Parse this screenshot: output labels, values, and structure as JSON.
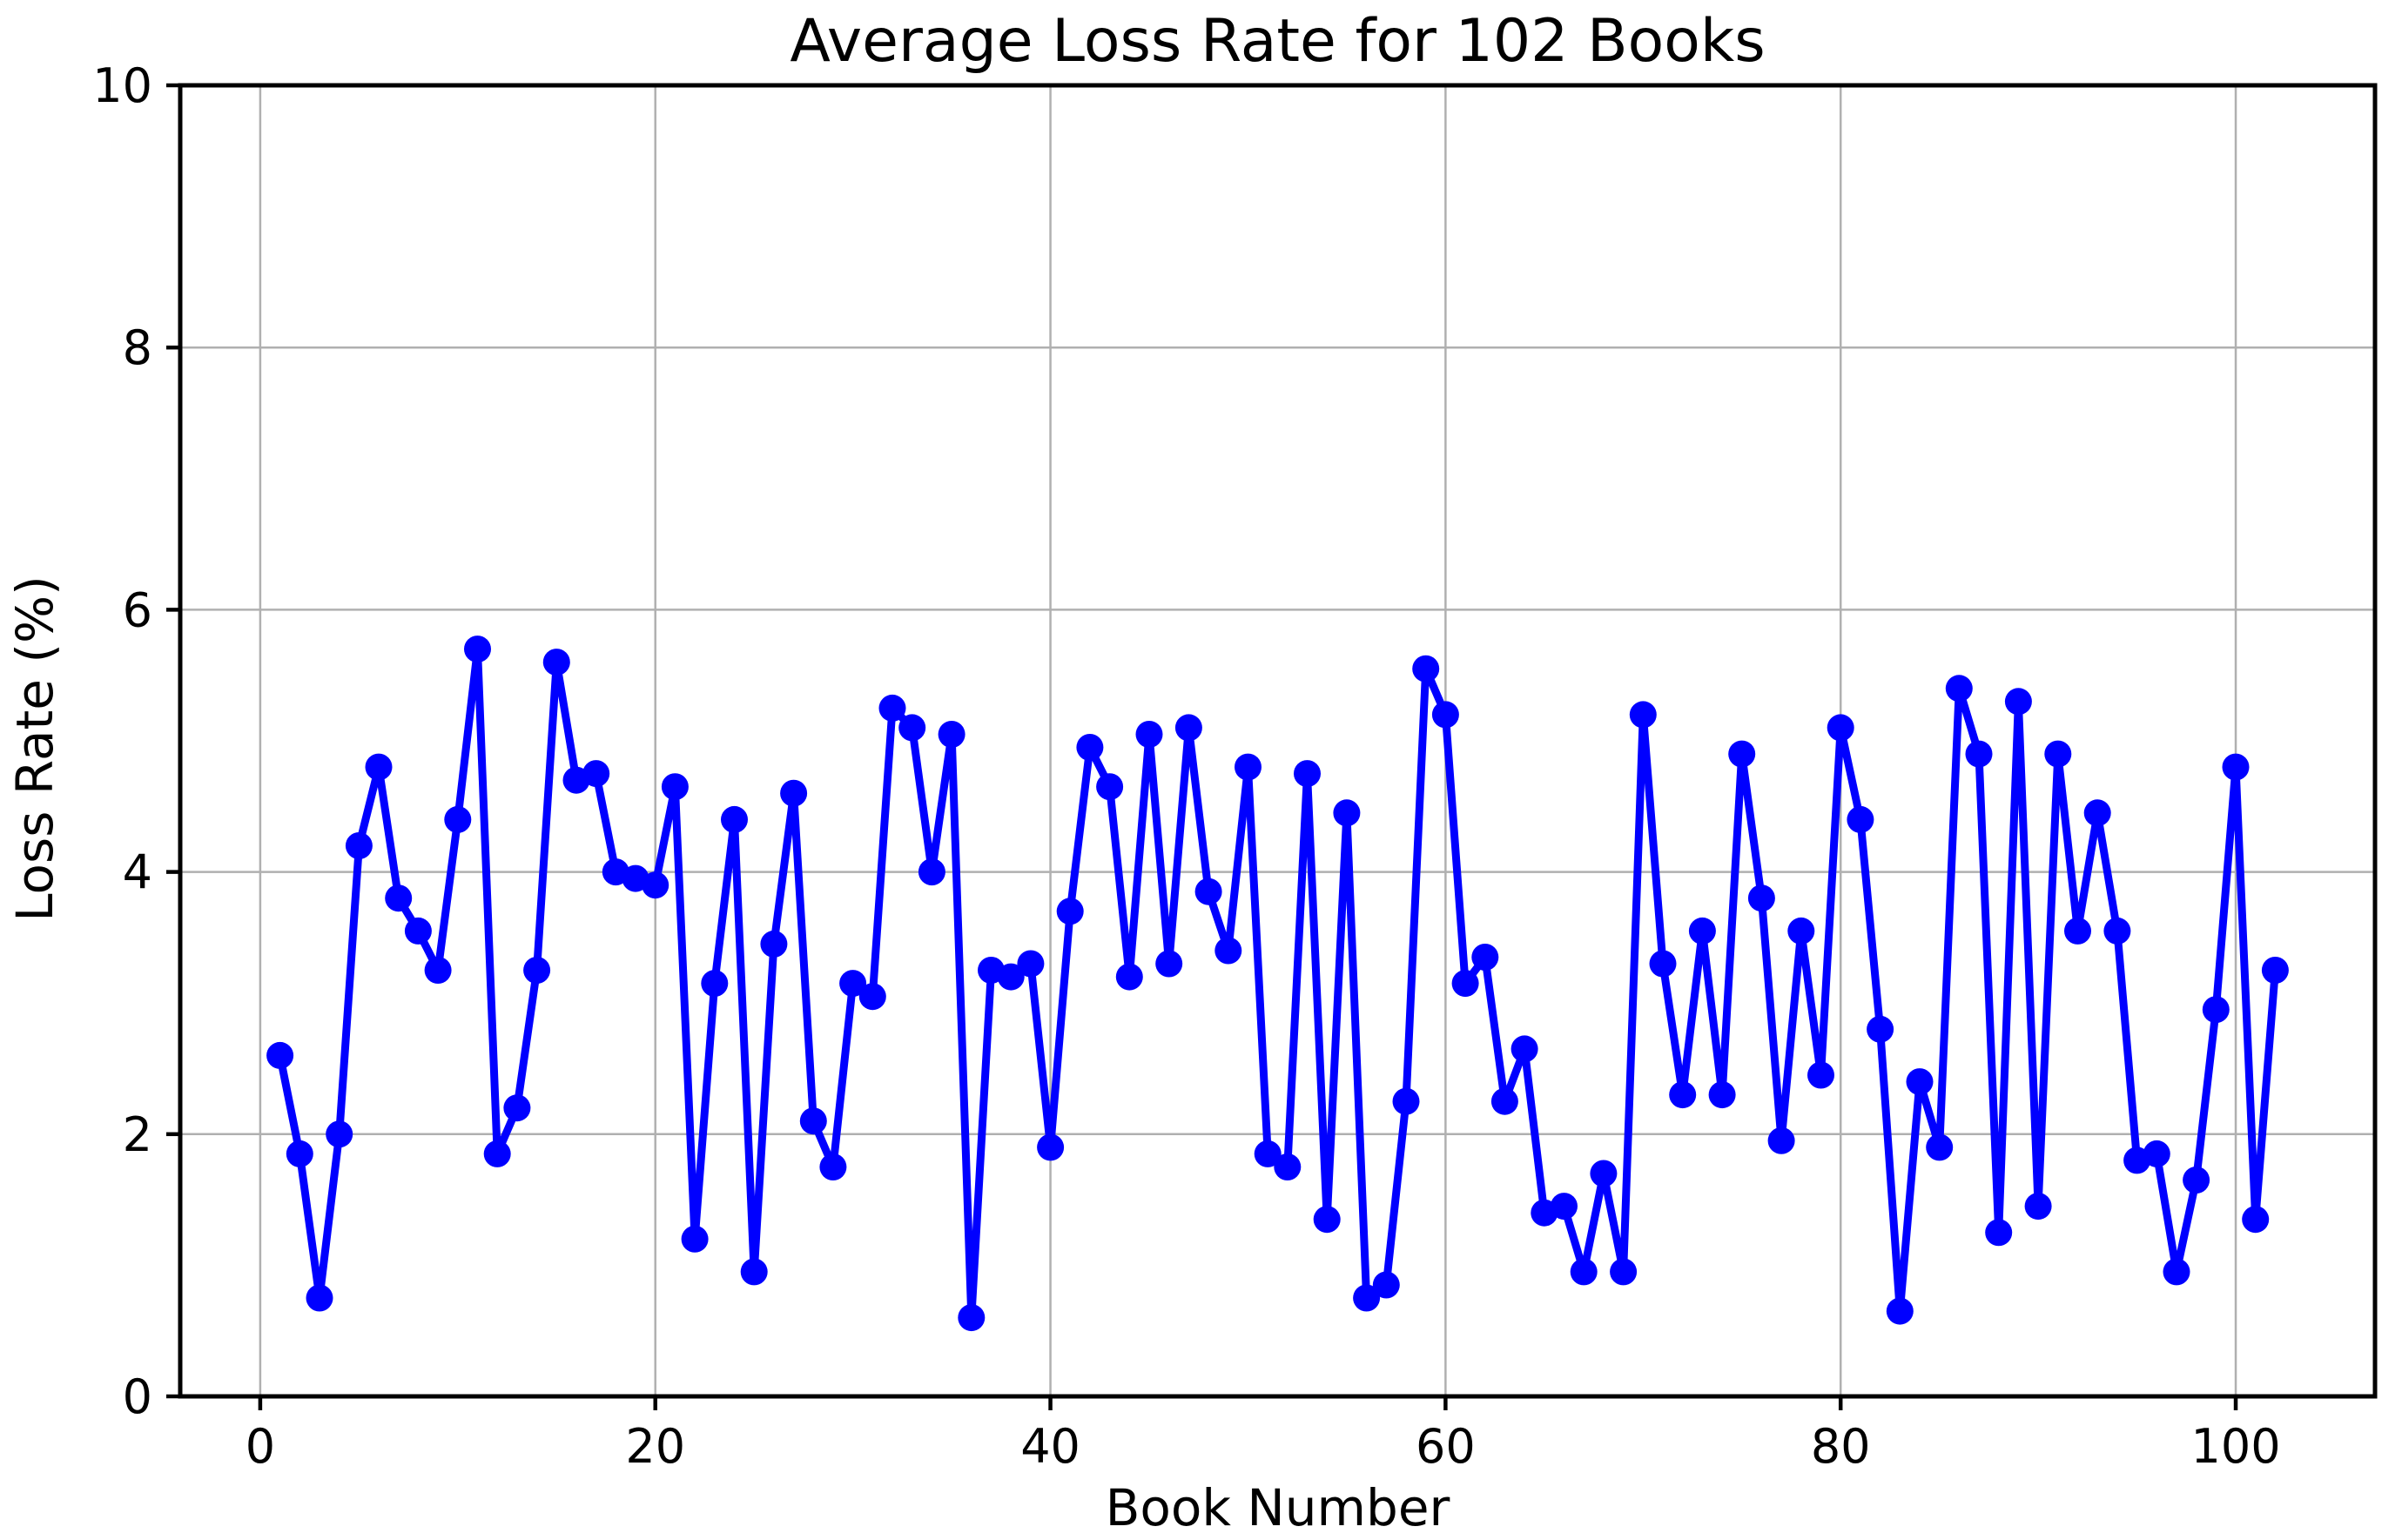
{
  "figure": {
    "title": "Average Loss Rate for 102 Books",
    "xlabel": "Book Number",
    "ylabel": "Loss Rate (%)"
  },
  "chart_data": {
    "type": "line",
    "title": "Average Loss Rate for 102 Books",
    "xlabel": "Book Number",
    "ylabel": "Loss Rate (%)",
    "x": [
      1,
      2,
      3,
      4,
      5,
      6,
      7,
      8,
      9,
      10,
      11,
      12,
      13,
      14,
      15,
      16,
      17,
      18,
      19,
      20,
      21,
      22,
      23,
      24,
      25,
      26,
      27,
      28,
      29,
      30,
      31,
      32,
      33,
      34,
      35,
      36,
      37,
      38,
      39,
      40,
      41,
      42,
      43,
      44,
      45,
      46,
      47,
      48,
      49,
      50,
      51,
      52,
      53,
      54,
      55,
      56,
      57,
      58,
      59,
      60,
      61,
      62,
      63,
      64,
      65,
      66,
      67,
      68,
      69,
      70,
      71,
      72,
      73,
      74,
      75,
      76,
      77,
      78,
      79,
      80,
      81,
      82,
      83,
      84,
      85,
      86,
      87,
      88,
      89,
      90,
      91,
      92,
      93,
      94,
      95,
      96,
      97,
      98,
      99,
      100,
      101,
      102
    ],
    "values": [
      2.6,
      1.85,
      0.75,
      2.0,
      4.2,
      4.8,
      3.8,
      3.55,
      3.25,
      4.4,
      5.7,
      1.85,
      2.2,
      3.25,
      5.6,
      4.7,
      4.75,
      4.0,
      3.95,
      3.9,
      4.65,
      1.2,
      3.15,
      4.4,
      0.95,
      3.45,
      4.6,
      2.1,
      1.75,
      3.15,
      3.05,
      5.25,
      5.1,
      4.0,
      5.05,
      0.6,
      3.25,
      3.2,
      3.3,
      1.9,
      3.7,
      4.95,
      4.65,
      3.2,
      5.05,
      3.3,
      5.1,
      3.85,
      3.4,
      4.8,
      1.85,
      1.75,
      4.75,
      1.35,
      4.45,
      0.75,
      0.85,
      2.25,
      5.55,
      5.2,
      3.15,
      3.35,
      2.25,
      2.65,
      1.4,
      1.45,
      0.95,
      1.7,
      0.95,
      5.2,
      3.3,
      2.3,
      3.55,
      2.3,
      4.9,
      3.8,
      1.95,
      3.55,
      2.45,
      5.1,
      4.4,
      2.8,
      0.65,
      2.4,
      1.9,
      5.4,
      4.9,
      1.25,
      5.3,
      1.45,
      4.9,
      3.55,
      4.45,
      3.55,
      1.8,
      1.85,
      0.95,
      1.65,
      2.95,
      4.8,
      1.35,
      3.25
    ],
    "x_ticks": [
      0,
      20,
      40,
      60,
      80,
      100
    ],
    "y_ticks": [
      0,
      2,
      4,
      6,
      8,
      10
    ],
    "xlim": [
      -4.05,
      107.05
    ],
    "ylim": [
      0,
      10
    ],
    "grid": true,
    "legend_position": "none",
    "line_color": "#0000FF",
    "marker": "o",
    "grid_color": "#b0b0b0",
    "spine_color": "#000000",
    "tick_color": "#000000",
    "background_color": "#ffffff"
  }
}
